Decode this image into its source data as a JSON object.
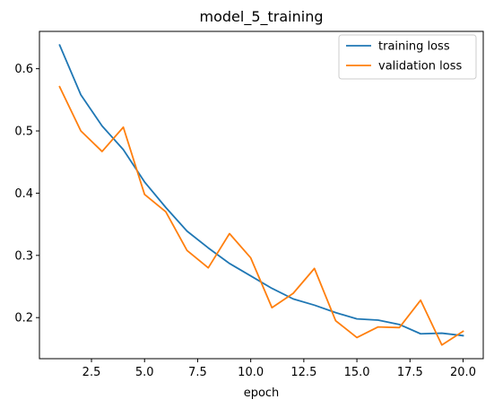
{
  "chart_data": {
    "type": "line",
    "title": "model_5_training",
    "xlabel": "epoch",
    "ylabel": "",
    "xlim": [
      0.05,
      20.95
    ],
    "ylim": [
      0.134,
      0.66
    ],
    "xticks": [
      2.5,
      5.0,
      7.5,
      10.0,
      12.5,
      15.0,
      17.5,
      20.0
    ],
    "xtick_labels": [
      "2.5",
      "5.0",
      "7.5",
      "10.0",
      "12.5",
      "15.0",
      "17.5",
      "20.0"
    ],
    "yticks": [
      0.2,
      0.3,
      0.4,
      0.5,
      0.6
    ],
    "ytick_labels": [
      "0.2",
      "0.3",
      "0.4",
      "0.5",
      "0.6"
    ],
    "grid": false,
    "legend_position": "upper-right",
    "x": [
      1,
      2,
      3,
      4,
      5,
      6,
      7,
      8,
      9,
      10,
      11,
      12,
      13,
      14,
      15,
      16,
      17,
      18,
      19,
      20
    ],
    "series": [
      {
        "name": "training loss",
        "color": "#1f77b4",
        "values": [
          0.638,
          0.558,
          0.508,
          0.47,
          0.418,
          0.377,
          0.339,
          0.312,
          0.287,
          0.267,
          0.247,
          0.23,
          0.22,
          0.208,
          0.198,
          0.196,
          0.189,
          0.174,
          0.175,
          0.171
        ]
      },
      {
        "name": "validation loss",
        "color": "#ff7f0e",
        "values": [
          0.571,
          0.5,
          0.467,
          0.506,
          0.398,
          0.37,
          0.308,
          0.28,
          0.335,
          0.296,
          0.216,
          0.239,
          0.279,
          0.195,
          0.168,
          0.185,
          0.184,
          0.228,
          0.156,
          0.178
        ]
      }
    ]
  }
}
